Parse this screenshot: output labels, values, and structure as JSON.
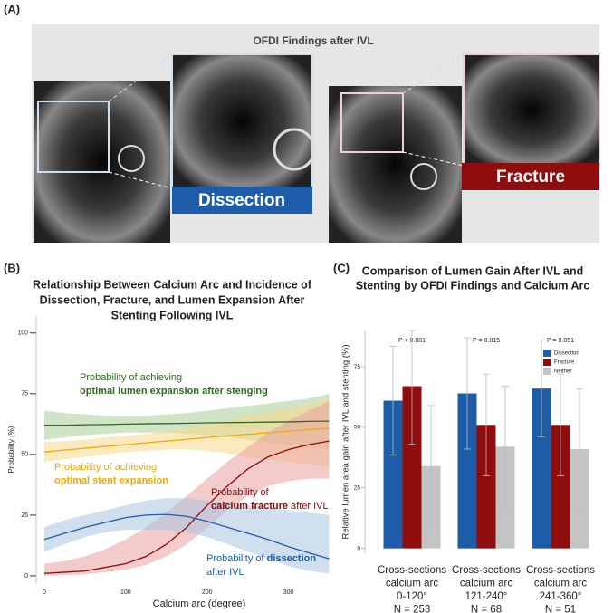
{
  "panel_a": {
    "label": "(A)",
    "title": "OFDI Findings after IVL",
    "image_labels": [
      "Dissection",
      "Fracture"
    ]
  },
  "chart_data": [
    {
      "type": "line",
      "panel_label": "(B)",
      "title": [
        "Relationship Between Calcium Arc and Incidence of",
        "Dissection, Fracture, and Lumen Expansion After",
        "Stenting Following IVL"
      ],
      "x_label": "Calcium arc (degree)",
      "y_label": "Probability (%)",
      "x": [
        0,
        25,
        50,
        75,
        100,
        125,
        150,
        175,
        200,
        225,
        250,
        275,
        300,
        325,
        350
      ],
      "xlim": [
        -10,
        355
      ],
      "xticks": [
        0,
        100,
        200,
        300
      ],
      "ylim": [
        -3,
        107
      ],
      "yticks": [
        0,
        25,
        50,
        75,
        100
      ],
      "series": [
        {
          "color": "#2e6b1e",
          "band_color": "#a9cf9b",
          "values": [
            62,
            62,
            62.2,
            62.3,
            62.5,
            62.6,
            62.7,
            62.8,
            63,
            63.1,
            63.2,
            63.3,
            63.4,
            63.6,
            63.7
          ],
          "lower": [
            56,
            57,
            58,
            58.5,
            59,
            59,
            59,
            58.5,
            58,
            57,
            56,
            55,
            54,
            53,
            52
          ],
          "upper": [
            68,
            67,
            66.5,
            66,
            66,
            66,
            66.5,
            67,
            68,
            69,
            70,
            71,
            72,
            73,
            75
          ]
        },
        {
          "color": "#f2a900",
          "band_color": "#f9d88a",
          "values": [
            51,
            51.8,
            52.5,
            53.3,
            54,
            54.8,
            55.5,
            56.2,
            57,
            57.7,
            58.3,
            59,
            59.6,
            60.2,
            60.8
          ],
          "lower": [
            47,
            48,
            49,
            50,
            51,
            51.5,
            52,
            52,
            51.5,
            50.5,
            49,
            48,
            47,
            46,
            45
          ],
          "upper": [
            55,
            55.5,
            56,
            57,
            57.5,
            58.5,
            59.5,
            61,
            62.5,
            64,
            66,
            67.5,
            69,
            71,
            73
          ]
        },
        {
          "color": "#8b0a0a",
          "band_color": "#e9a0a0",
          "values": [
            1,
            1.5,
            2,
            3.5,
            5,
            8,
            13,
            20,
            29,
            37,
            44,
            49,
            52,
            54,
            55.5
          ],
          "lower": [
            0,
            0.3,
            0.7,
            1.5,
            2.5,
            4.5,
            8,
            13,
            20,
            27,
            33,
            37,
            39,
            40,
            40
          ],
          "upper": [
            5,
            6,
            8,
            11,
            15,
            20,
            26,
            33,
            40,
            47,
            53,
            59,
            64,
            68,
            72
          ]
        },
        {
          "color": "#1e5ea8",
          "band_color": "#a9c4e0",
          "values": [
            15,
            17.5,
            20,
            22,
            24,
            25,
            25.3,
            24.5,
            22.5,
            20,
            17.5,
            15,
            12,
            9.5,
            7
          ],
          "lower": [
            10,
            13,
            16,
            18,
            19,
            19,
            19,
            18,
            16,
            13,
            10,
            7,
            4,
            2,
            1
          ],
          "upper": [
            20,
            23,
            25,
            27,
            29,
            31,
            32,
            32,
            31,
            30,
            29,
            28,
            27,
            26,
            25
          ]
        }
      ],
      "annotations": [
        {
          "color": "#2e6b1e",
          "lines": [
            [
              {
                "text": "Probability of achieving"
              }
            ],
            [
              {
                "text": "optimal lumen expansion after stenging",
                "bold": true
              }
            ]
          ]
        },
        {
          "color": "#f2a900",
          "lines": [
            [
              {
                "text": "Probability of achieving"
              }
            ],
            [
              {
                "text": "optimal stent expansion",
                "bold": true
              }
            ]
          ]
        },
        {
          "color": "#8b0a0a",
          "lines": [
            [
              {
                "text": "Probability of"
              }
            ],
            [
              {
                "text": "calcium fracture",
                "bold": true
              },
              {
                "text": " after IVL"
              }
            ]
          ]
        },
        {
          "color": "#1e5ea8",
          "lines": [
            [
              {
                "text": "Probability of "
              },
              {
                "text": "dissection",
                "bold": true
              }
            ],
            [
              {
                "text": "after IVL"
              }
            ]
          ]
        }
      ]
    },
    {
      "type": "bar",
      "panel_label": "(C)",
      "title": [
        "Comparison of Lumen Gain After IVL and",
        "Stenting by OFDI Findings and Calcium Arc"
      ],
      "y_label": "Relative lumen area gain after IVL and stenting (%)",
      "categories": [
        [
          "Cross-sections",
          "calcium arc",
          "0-120°",
          "N = 253"
        ],
        [
          "Cross-sections",
          "calcium arc",
          "121-240°",
          "N = 68"
        ],
        [
          "Cross-sections",
          "calcium arc",
          "241-360°",
          "N = 51"
        ]
      ],
      "p_values": [
        "P < 0.001",
        "P = 0.015",
        "P = 0.051"
      ],
      "ylim": [
        -2,
        90
      ],
      "yticks": [
        0,
        25,
        50,
        75
      ],
      "legend": "top-right",
      "series": [
        {
          "name": "Dissection",
          "color": "#1c5ca8",
          "values": [
            61,
            64,
            66
          ],
          "errors": [
            22.5,
            23,
            20
          ]
        },
        {
          "name": "Fracture",
          "color": "#8f0d0d",
          "values": [
            67,
            51,
            51
          ],
          "errors": [
            24,
            21,
            21
          ]
        },
        {
          "name": "Neither",
          "color": "#c4c4c4",
          "values": [
            34,
            42,
            41
          ],
          "errors": [
            25,
            25,
            25
          ]
        }
      ]
    }
  ]
}
